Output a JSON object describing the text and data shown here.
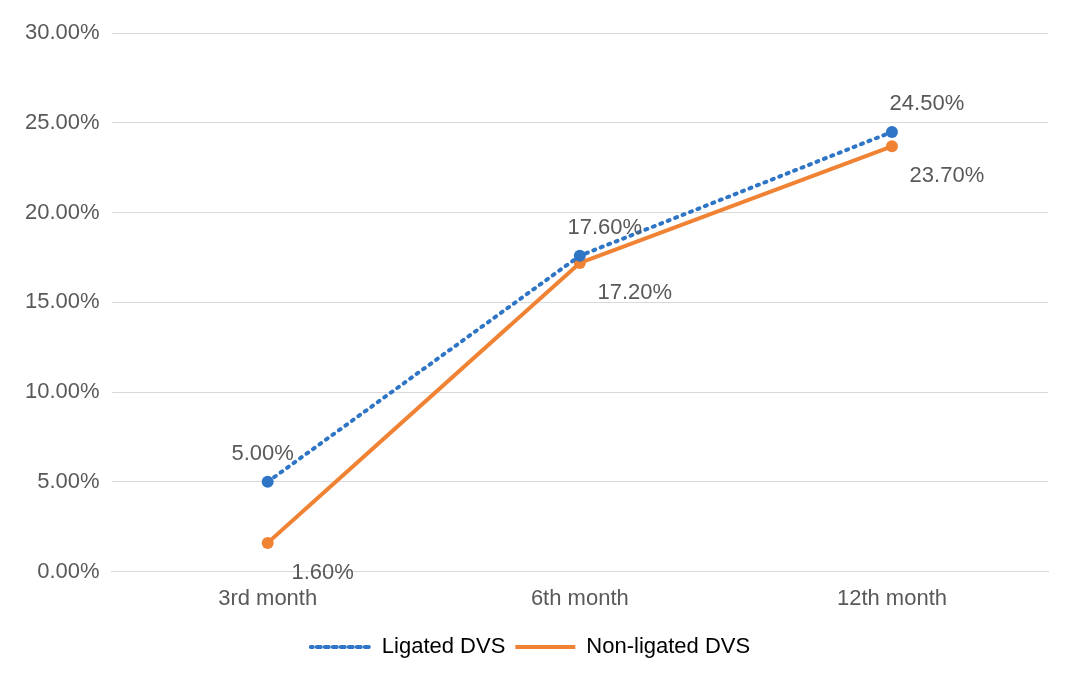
{
  "chart_data": {
    "type": "line",
    "categories": [
      "3rd month",
      "6th month",
      "12th month"
    ],
    "series": [
      {
        "name": "Ligated DVS",
        "color": "#2e75c6",
        "values": [
          5.0,
          17.6,
          24.5
        ],
        "line_style": "dotted",
        "value_labels": [
          "5.00%",
          "17.60%",
          "24.50%"
        ]
      },
      {
        "name": "Non-ligated DVS",
        "color": "#f08234",
        "values": [
          1.6,
          17.2,
          23.7
        ],
        "line_style": "solid",
        "value_labels": [
          "1.60%",
          "17.20%",
          "23.70%"
        ]
      }
    ],
    "ylim": [
      0,
      30
    ],
    "yticks": [
      {
        "value": 0,
        "label": "0.00%"
      },
      {
        "value": 5,
        "label": "5.00%"
      },
      {
        "value": 10,
        "label": "10.00%"
      },
      {
        "value": 15,
        "label": "15.00%"
      },
      {
        "value": 20,
        "label": "20.00%"
      },
      {
        "value": 25,
        "label": "25.00%"
      },
      {
        "value": 30,
        "label": "30.00%"
      }
    ],
    "grid": "y",
    "legend": "bottom",
    "marker": "circle"
  }
}
